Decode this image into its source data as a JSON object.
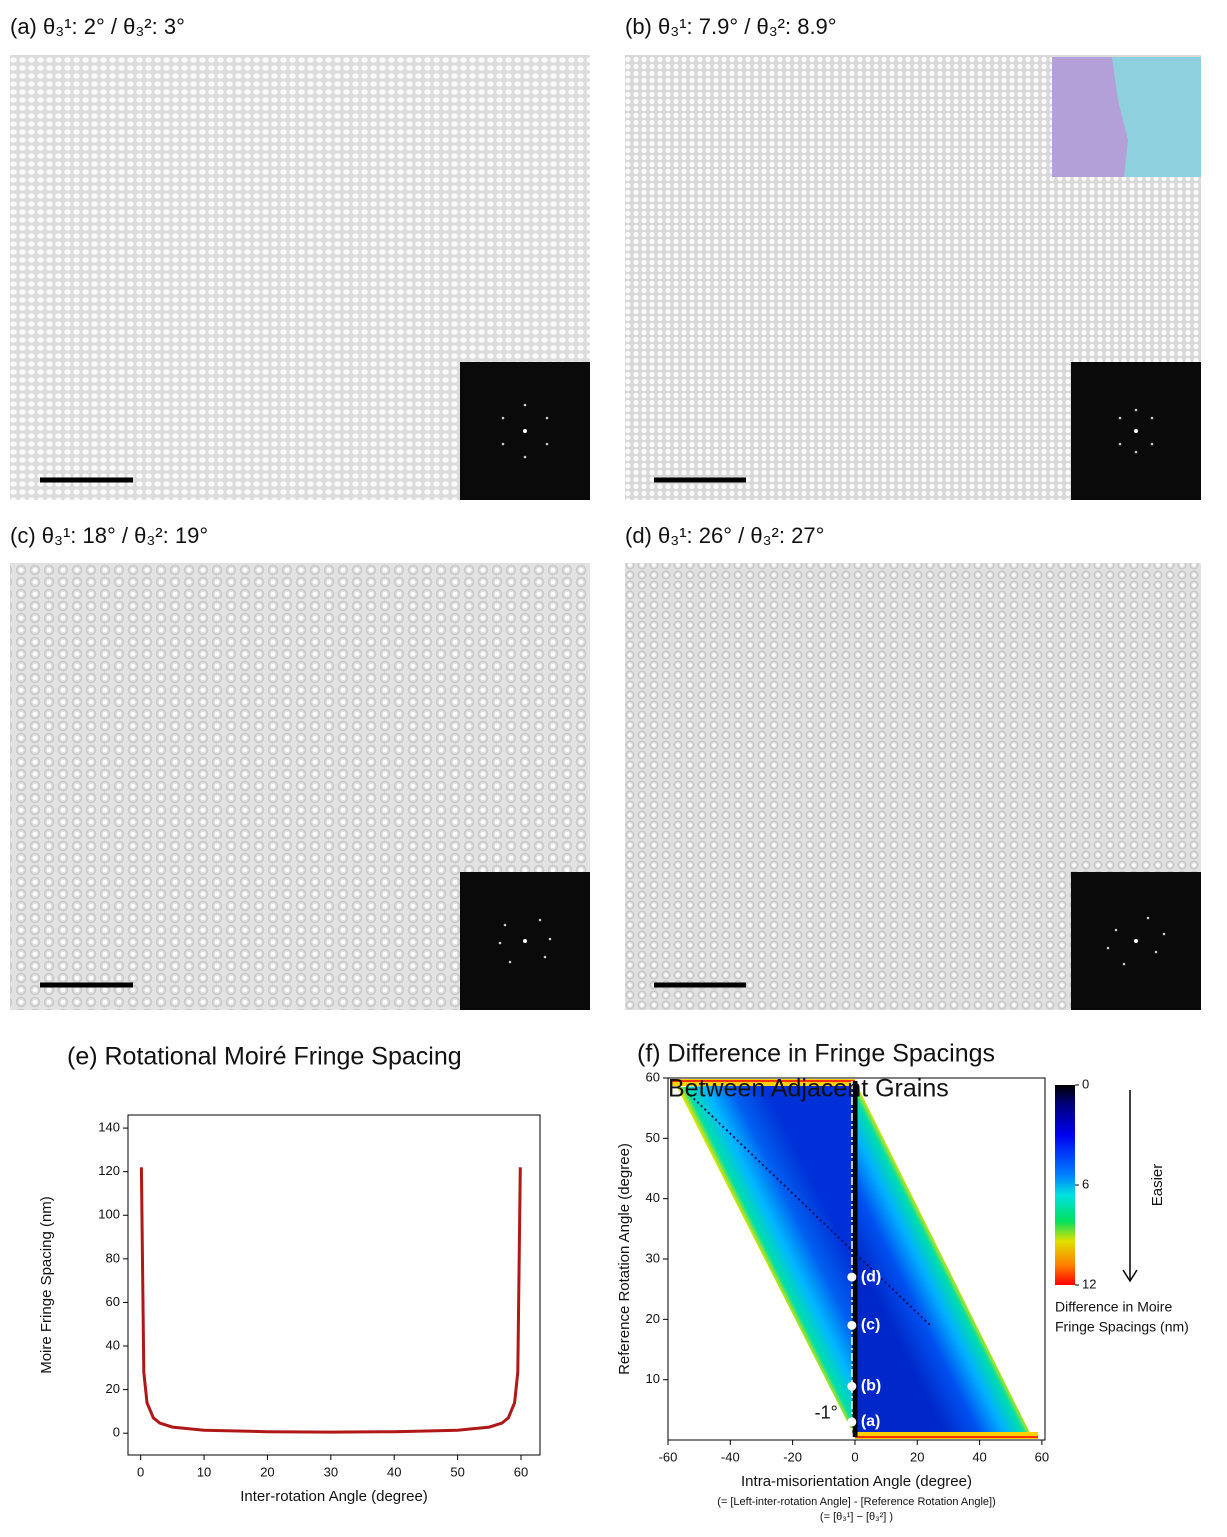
{
  "panels": [
    {
      "title": "(a) θ₃¹: 2° / θ₃²: 3°"
    },
    {
      "title": "(b) θ₃¹: 7.9° / θ₃²: 8.9°"
    },
    {
      "title": "(c) θ₃¹: 18° / θ₃²: 19°"
    },
    {
      "title": "(d) θ₃¹: 26° / θ₃²: 27°"
    }
  ],
  "chart_data": [
    {
      "type": "line",
      "title": "(e) Rotational Moiré Fringe Spacing",
      "x_label": "Inter-rotation Angle (degree)",
      "y_label": "Moire Fringe Spacing (nm)",
      "x": [
        0.115,
        0.5,
        1,
        2,
        3,
        5,
        10,
        20,
        30,
        40,
        50,
        55,
        57,
        58,
        59,
        59.5,
        59.885
      ],
      "series": [
        {
          "color": "#b01818",
          "values": [
            122,
            28,
            14,
            7,
            4.7,
            2.8,
            1.4,
            0.7,
            0.5,
            0.7,
            1.4,
            2.8,
            4.7,
            7,
            14,
            28,
            122
          ]
        }
      ],
      "xlim": [
        -2,
        63
      ],
      "ylim": [
        -10,
        146
      ],
      "xticks": [
        0,
        10,
        20,
        30,
        40,
        50,
        60
      ],
      "yticks": [
        0,
        20,
        40,
        60,
        80,
        100,
        120,
        140
      ]
    },
    {
      "type": "scatter",
      "title": [
        "(f) Difference in Fringe Spacings",
        "Between Adjacent Grains"
      ],
      "x_label": "Intra-misorientation Angle (degree)",
      "x_label_notes": [
        "(= [Left-inter-rotation Angle] - [Reference Rotation Angle])",
        "(= [θ₃¹] − [θ₃²] )"
      ],
      "y_label": "Reference Rotation Angle (degree)",
      "series": [
        {
          "color": "#ffffff",
          "x": [
            -1,
            -1,
            -1,
            -1
          ],
          "values": [
            3,
            8.9,
            19,
            27
          ],
          "labels": [
            "(a)",
            "(b)",
            "(c)",
            "(d)"
          ]
        }
      ],
      "annotations": [
        "-1°"
      ],
      "xlim": [
        -60,
        61
      ],
      "ylim": [
        0,
        60
      ],
      "xticks": [
        -60,
        -40,
        -20,
        0,
        20,
        40,
        60
      ],
      "yticks": [
        10,
        20,
        30,
        40,
        50,
        60
      ],
      "colorbar": {
        "lim": [
          0,
          12
        ],
        "ticks": [
          0,
          6,
          12
        ],
        "label": [
          "Difference in Moire",
          "Fringe Spacings (nm)"
        ],
        "arrow_label": "Easier"
      }
    }
  ]
}
